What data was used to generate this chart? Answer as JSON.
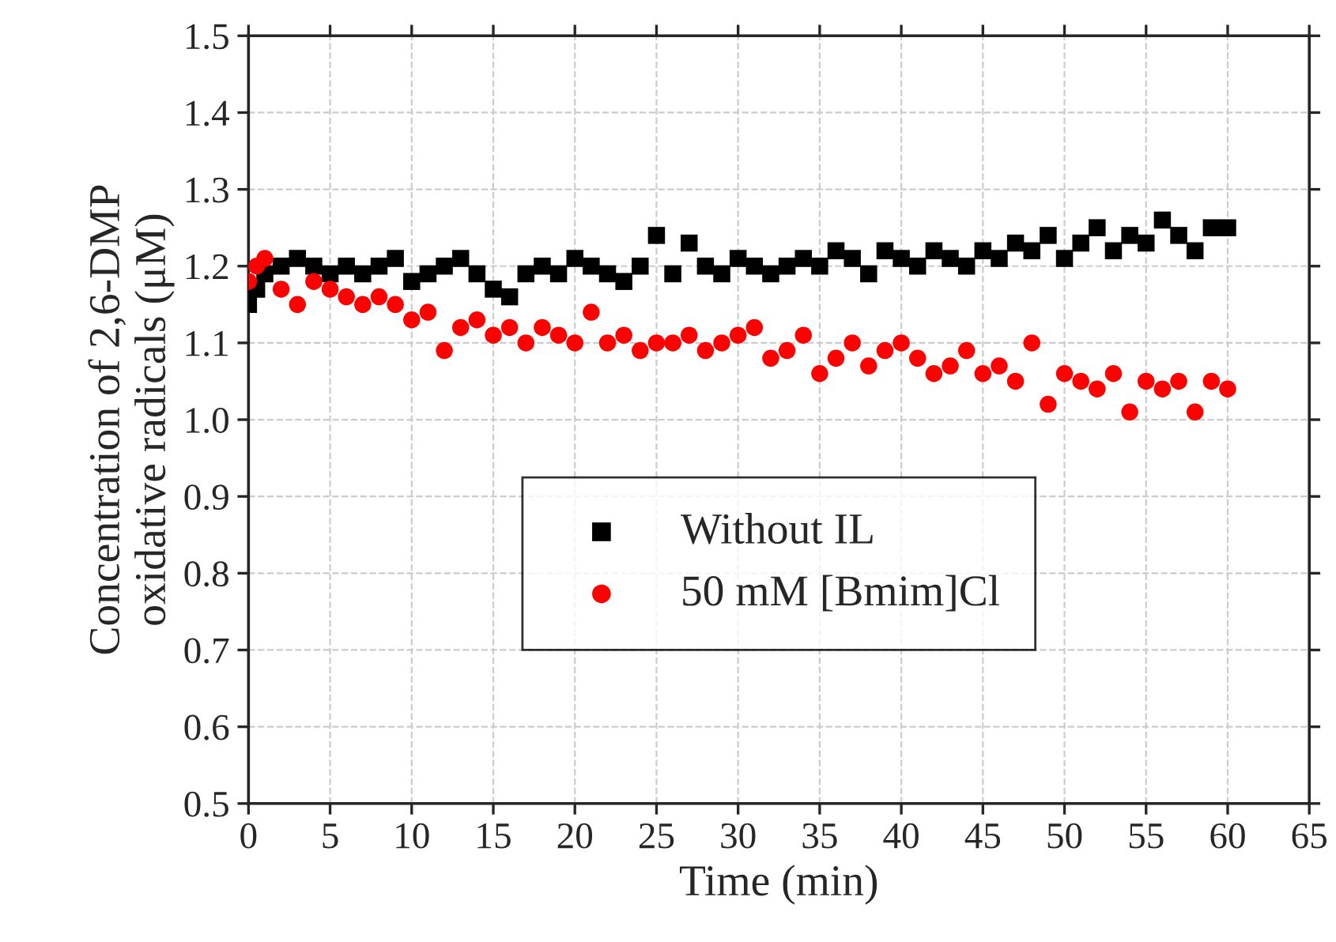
{
  "chart_data": {
    "type": "scatter",
    "xlabel": "Time (min)",
    "ylabel": "Concentration of 2,6-DMP\noxidative radicals (μM)",
    "xlim": [
      0,
      65
    ],
    "xticks": [
      0,
      5,
      10,
      15,
      20,
      25,
      30,
      35,
      40,
      45,
      50,
      55,
      60,
      65
    ],
    "ylim": [
      0.5,
      1.5
    ],
    "yticks": [
      0.5,
      0.6,
      0.7,
      0.8,
      0.9,
      {
        "value": 1.0,
        "label": "1.0"
      },
      1.1,
      1.2,
      1.3,
      1.4,
      1.5
    ],
    "grid": true,
    "legend": "lower center",
    "series": [
      {
        "name": "Without IL",
        "color": "#000000",
        "marker": "square",
        "x": [
          0,
          0.5,
          1,
          2,
          3,
          4,
          5,
          6,
          7,
          8,
          9,
          10,
          11,
          12,
          13,
          14,
          15,
          16,
          17,
          18,
          19,
          20,
          21,
          22,
          23,
          24,
          25,
          26,
          27,
          28,
          29,
          30,
          31,
          32,
          33,
          34,
          35,
          36,
          37,
          38,
          39,
          40,
          41,
          42,
          43,
          44,
          45,
          46,
          47,
          48,
          49,
          50,
          51,
          52,
          53,
          54,
          55,
          56,
          57,
          58,
          59,
          60
        ],
        "values": [
          1.15,
          1.17,
          1.19,
          1.2,
          1.21,
          1.2,
          1.19,
          1.2,
          1.19,
          1.2,
          1.21,
          1.18,
          1.19,
          1.2,
          1.21,
          1.19,
          1.17,
          1.16,
          1.19,
          1.2,
          1.19,
          1.21,
          1.2,
          1.19,
          1.18,
          1.2,
          1.24,
          1.19,
          1.23,
          1.2,
          1.19,
          1.21,
          1.2,
          1.19,
          1.2,
          1.21,
          1.2,
          1.22,
          1.21,
          1.19,
          1.22,
          1.21,
          1.2,
          1.22,
          1.21,
          1.2,
          1.22,
          1.21,
          1.23,
          1.22,
          1.24,
          1.21,
          1.23,
          1.25,
          1.22,
          1.24,
          1.23,
          1.26,
          1.24,
          1.22,
          1.25,
          1.25
        ]
      },
      {
        "name": "50 mM [Bmim]Cl",
        "color": "#ff0000",
        "marker": "circle",
        "x": [
          0,
          0.5,
          1,
          2,
          3,
          4,
          5,
          6,
          7,
          8,
          9,
          10,
          11,
          12,
          13,
          14,
          15,
          16,
          17,
          18,
          19,
          20,
          21,
          22,
          23,
          24,
          25,
          26,
          27,
          28,
          29,
          30,
          31,
          32,
          33,
          34,
          35,
          36,
          37,
          38,
          39,
          40,
          41,
          42,
          43,
          44,
          45,
          46,
          47,
          48,
          49,
          50,
          51,
          52,
          53,
          54,
          55,
          56,
          57,
          58,
          59,
          60
        ],
        "values": [
          1.18,
          1.2,
          1.21,
          1.17,
          1.15,
          1.18,
          1.17,
          1.16,
          1.15,
          1.16,
          1.15,
          1.13,
          1.14,
          1.09,
          1.12,
          1.13,
          1.11,
          1.12,
          1.1,
          1.12,
          1.11,
          1.1,
          1.14,
          1.1,
          1.11,
          1.09,
          1.1,
          1.1,
          1.11,
          1.09,
          1.1,
          1.11,
          1.12,
          1.08,
          1.09,
          1.11,
          1.06,
          1.08,
          1.1,
          1.07,
          1.09,
          1.1,
          1.08,
          1.06,
          1.07,
          1.09,
          1.06,
          1.07,
          1.05,
          1.1,
          1.02,
          1.06,
          1.05,
          1.04,
          1.06,
          1.01,
          1.05,
          1.04,
          1.05,
          1.01,
          1.05,
          1.04
        ]
      }
    ]
  }
}
